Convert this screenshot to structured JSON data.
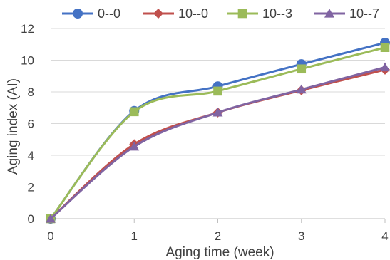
{
  "chart_data": {
    "type": "line",
    "title": "",
    "xlabel": "Aging time (week)",
    "ylabel": "Aging index (AI)",
    "x": [
      0,
      1,
      2,
      3,
      4
    ],
    "xlim": [
      0,
      4
    ],
    "ylim": [
      0,
      12
    ],
    "x_ticks": [
      "0",
      "1",
      "2",
      "3",
      "4"
    ],
    "y_ticks": [
      "0",
      "2",
      "4",
      "6",
      "8",
      "10",
      "12"
    ],
    "grid": "horizontal",
    "legend_position": "top",
    "smooth": true,
    "series": [
      {
        "name": "0--0",
        "color": "#4472C4",
        "marker": "circle",
        "values": [
          0,
          6.8,
          8.35,
          9.75,
          11.1
        ]
      },
      {
        "name": "10--0",
        "color": "#C0504D",
        "marker": "diamond",
        "values": [
          0,
          4.7,
          6.7,
          8.1,
          9.4
        ]
      },
      {
        "name": "10--3",
        "color": "#9BBB59",
        "marker": "square",
        "values": [
          0,
          6.75,
          8.05,
          9.45,
          10.8
        ]
      },
      {
        "name": "10--7",
        "color": "#8064A2",
        "marker": "triangle",
        "values": [
          0,
          4.55,
          6.7,
          8.15,
          9.55
        ]
      }
    ]
  }
}
